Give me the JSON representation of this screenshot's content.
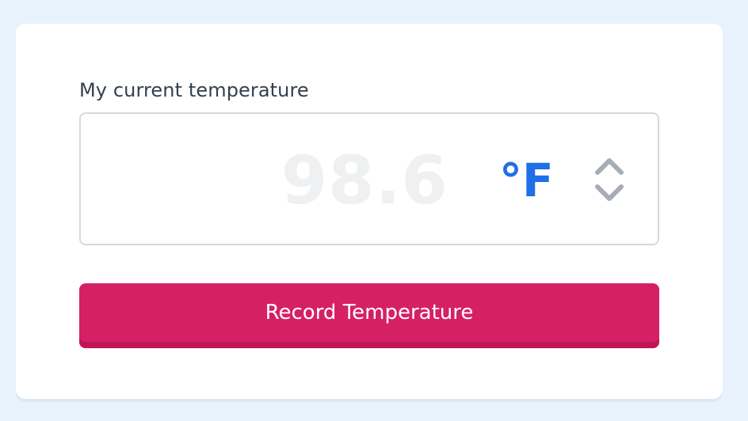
{
  "form": {
    "label": "My current temperature",
    "value": "98.6",
    "unit": "°F",
    "stepper_icon": "chevron-up-down-icon"
  },
  "actions": {
    "record_label": "Record Temperature"
  },
  "colors": {
    "background": "#e8f2fd",
    "accent_unit": "#1f6fe8",
    "button": "#d62065",
    "value_text": "#eef0f2"
  }
}
